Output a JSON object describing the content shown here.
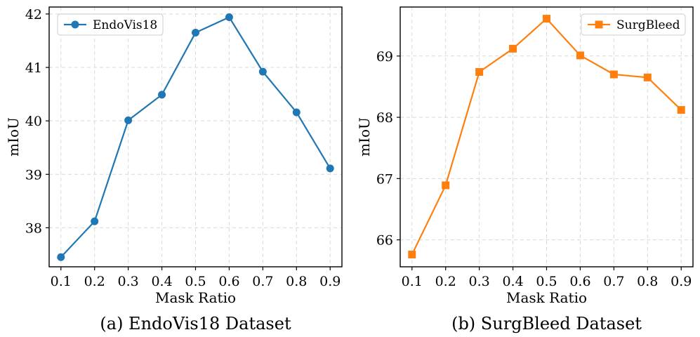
{
  "chart_data": [
    {
      "type": "line",
      "caption": "(a) EndoVis18 Dataset",
      "xlabel": "Mask Ratio",
      "ylabel": "mIoU",
      "x": [
        0.1,
        0.2,
        0.3,
        0.4,
        0.5,
        0.6,
        0.7,
        0.8,
        0.9
      ],
      "x_tick_labels": [
        "0.1",
        "0.2",
        "0.3",
        "0.4",
        "0.5",
        "0.6",
        "0.7",
        "0.8",
        "0.9"
      ],
      "xlim": [
        0.065,
        0.935
      ],
      "ylim": [
        37.27,
        42.13
      ],
      "y_ticks": [
        38,
        39,
        40,
        41,
        42
      ],
      "y_tick_labels": [
        "38",
        "39",
        "40",
        "41",
        "42"
      ],
      "grid": true,
      "legend_position": "top-left",
      "series": [
        {
          "name": "EndoVis18",
          "color": "#1f77b4",
          "marker": "circle",
          "values": [
            37.45,
            38.12,
            40.01,
            40.49,
            41.65,
            41.94,
            40.92,
            40.16,
            39.11
          ]
        }
      ]
    },
    {
      "type": "line",
      "caption": "(b) SurgBleed Dataset",
      "xlabel": "Mask Ratio",
      "ylabel": "mIoU",
      "x": [
        0.1,
        0.2,
        0.3,
        0.4,
        0.5,
        0.6,
        0.7,
        0.8,
        0.9
      ],
      "x_tick_labels": [
        "0.1",
        "0.2",
        "0.3",
        "0.4",
        "0.5",
        "0.6",
        "0.7",
        "0.8",
        "0.9"
      ],
      "xlim": [
        0.065,
        0.935
      ],
      "ylim": [
        65.56,
        69.8
      ],
      "y_ticks": [
        66,
        67,
        68,
        69
      ],
      "y_tick_labels": [
        "66",
        "67",
        "68",
        "69"
      ],
      "grid": true,
      "legend_position": "top-right",
      "series": [
        {
          "name": "SurgBleed",
          "color": "#ff7f0e",
          "marker": "square",
          "values": [
            65.76,
            66.89,
            68.74,
            69.12,
            69.61,
            69.01,
            68.7,
            68.65,
            68.12
          ]
        }
      ]
    }
  ]
}
